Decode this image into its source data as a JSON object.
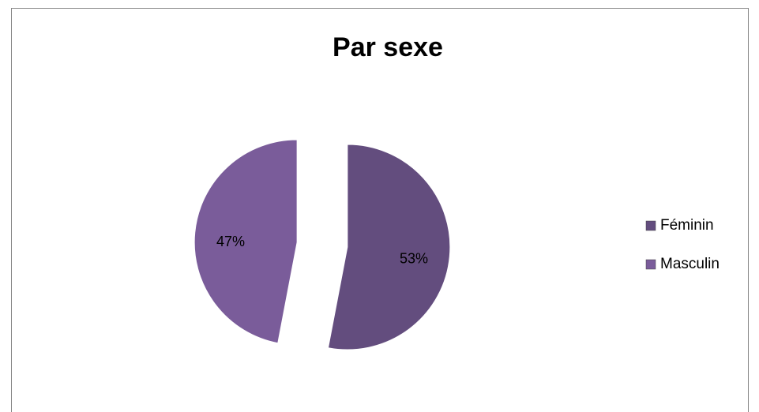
{
  "chart_data": {
    "type": "pie",
    "title": "Par sexe",
    "categories": [
      "Féminin",
      "Masculin"
    ],
    "values": [
      53,
      47
    ],
    "value_labels": [
      "53%",
      "47%"
    ],
    "colors": [
      "#634d7e",
      "#7a5c9a"
    ],
    "legend": "right"
  }
}
